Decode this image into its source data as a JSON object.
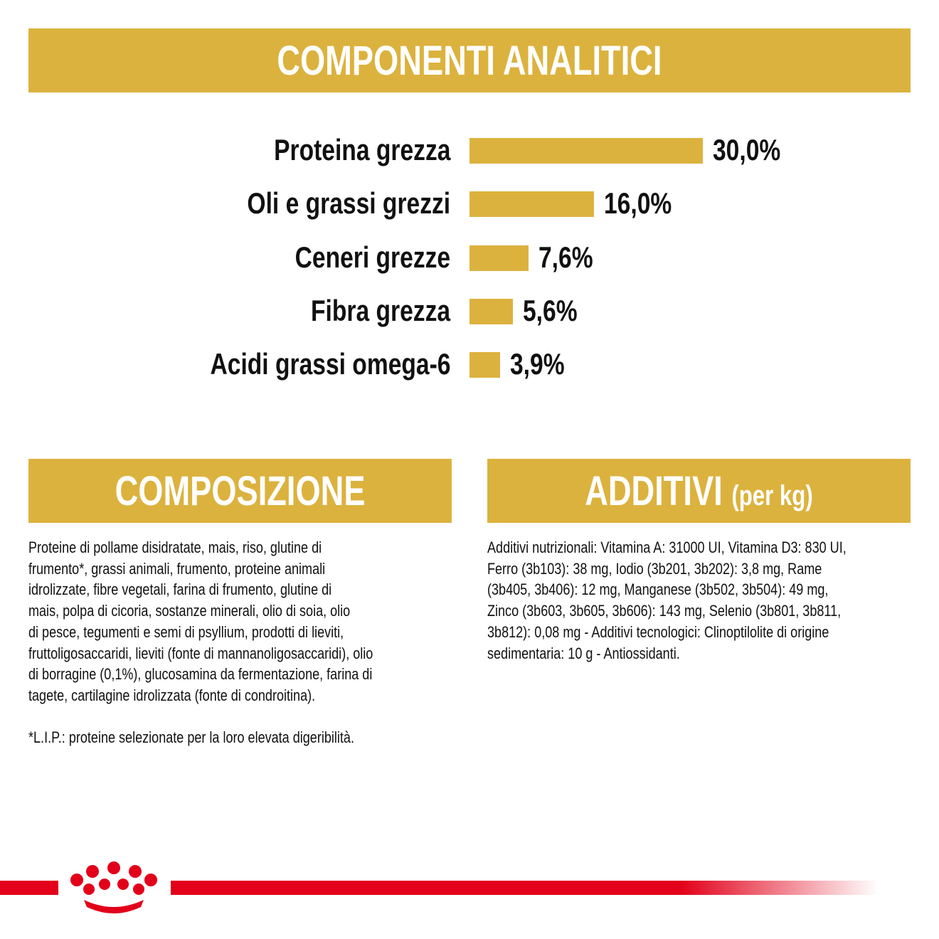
{
  "chart_data": {
    "type": "bar",
    "title": "COMPONENTI ANALITICI",
    "categories": [
      "Proteina grezza",
      "Oli e grassi grezzi",
      "Ceneri grezze",
      "Fibra grezza",
      "Acidi grassi omega-6"
    ],
    "values": [
      30.0,
      16.0,
      7.6,
      5.6,
      3.9
    ],
    "value_labels": [
      "30,0%",
      "16,0%",
      "7,6%",
      "5,6%",
      "3,9%"
    ],
    "color": "#dcb23e"
  },
  "composition": {
    "title": "COMPOSIZIONE",
    "lines": [
      "Proteine di pollame disidratate, mais, riso, glutine di",
      "frumento*, grassi animali, frumento, proteine animali",
      "idrolizzate, fibre vegetali, farina di frumento, glutine di",
      "mais, polpa di cicoria, sostanze minerali, olio di soia, olio",
      "di pesce, tegumenti e semi di psyllium, prodotti di lieviti,",
      "fruttoligosaccaridi, lieviti (fonte di mannanoligosaccaridi), olio",
      "di borragine (0,1%), glucosamina da fermentazione, farina di",
      "tagete, cartilagine idrolizzata (fonte di condroitina)."
    ],
    "footnote": "*L.I.P.: proteine selezionate per la loro elevata digeribilità."
  },
  "additives": {
    "title": "ADDITIVI",
    "title_note": "(per kg)",
    "lines": [
      "Additivi nutrizionali: Vitamina A: 31000 UI, Vitamina D3: 830 UI,",
      "Ferro (3b103): 38 mg, Iodio (3b201, 3b202): 3,8 mg, Rame",
      "(3b405, 3b406): 12 mg, Manganese (3b502, 3b504): 49 mg,",
      "Zinco (3b603, 3b605, 3b606): 143 mg, Selenio (3b801, 3b811,",
      "3b812): 0,08 mg - Additivi tecnologici: Clinoptilolite di origine",
      "sedimentaria: 10 g - Antiossidanti."
    ]
  }
}
